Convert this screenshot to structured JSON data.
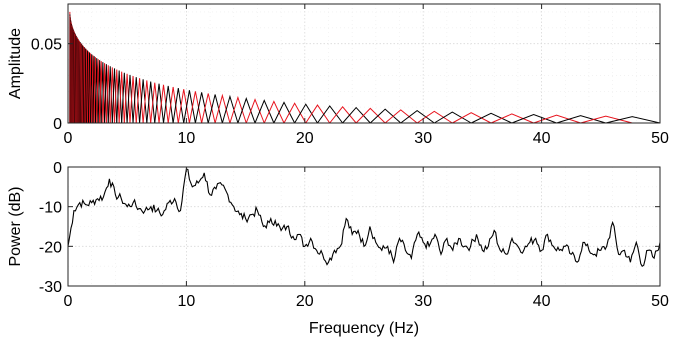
{
  "chart_data": [
    {
      "type": "line",
      "xlabel": "",
      "ylabel": "Amplitude",
      "xlim": [
        0,
        50
      ],
      "ylim": [
        0,
        0.075
      ],
      "xticks": [
        "0",
        "10",
        "20",
        "30",
        "40",
        "50"
      ],
      "yticks": [
        "0",
        "0.05"
      ],
      "grid": "on (major + minor, dotted)",
      "colors": [
        "#000000",
        "#e8141e"
      ],
      "description_values": {
        "filter_count": 120,
        "filter_shape": "triangular, alternating black/red",
        "filter_spacing": "logarithmic (dense at low frequency)",
        "peak_amplitude_at_0Hz": 0.07,
        "peak_amplitude_at_50Hz": 0.004
      }
    },
    {
      "type": "line",
      "xlabel": "Frequency (Hz)",
      "ylabel": "Power (dB)",
      "xlim": [
        0,
        50
      ],
      "ylim": [
        -30,
        0
      ],
      "xticks": [
        "0",
        "10",
        "20",
        "30",
        "40",
        "50"
      ],
      "yticks": [
        "0",
        "-10",
        "-20",
        "-30"
      ],
      "grid": "on (major + minor, dotted)",
      "color": "#000000",
      "x": [
        0,
        0.5,
        1,
        1.5,
        2,
        2.5,
        3,
        3.5,
        4,
        4.5,
        5,
        5.5,
        6,
        6.5,
        7,
        7.5,
        8,
        8.5,
        9,
        9.5,
        10,
        10.5,
        11,
        11.5,
        12,
        12.5,
        13,
        13.5,
        14,
        14.5,
        15,
        15.5,
        16,
        16.5,
        17,
        17.5,
        18,
        18.5,
        19,
        19.5,
        20,
        20.5,
        21,
        21.5,
        22,
        22.5,
        23,
        23.5,
        24,
        24.5,
        25,
        25.5,
        26,
        26.5,
        27,
        27.5,
        28,
        28.5,
        29,
        29.5,
        30,
        30.5,
        31,
        31.5,
        32,
        32.5,
        33,
        33.5,
        34,
        34.5,
        35,
        35.5,
        36,
        36.5,
        37,
        37.5,
        38,
        38.5,
        39,
        39.5,
        40,
        40.5,
        41,
        41.5,
        42,
        42.5,
        43,
        43.5,
        44,
        44.5,
        45,
        45.5,
        46,
        46.5,
        47,
        47.5,
        48,
        48.5,
        49,
        49.5,
        50
      ],
      "y": [
        -20,
        -11,
        -9,
        -9.5,
        -9,
        -8,
        -7.5,
        -3,
        -7,
        -8,
        -10,
        -9,
        -10.5,
        -11,
        -10,
        -11,
        -12,
        -9,
        -8,
        -11,
        -0.5,
        -5,
        -4,
        -1.5,
        -7,
        -5.5,
        -4.5,
        -7,
        -10,
        -12,
        -13,
        -12,
        -11,
        -15,
        -14,
        -13.5,
        -16,
        -15,
        -17.5,
        -17,
        -20,
        -18,
        -21,
        -22,
        -24,
        -21,
        -20,
        -13,
        -17,
        -16,
        -20,
        -15,
        -19,
        -21,
        -20,
        -24,
        -18,
        -21,
        -23,
        -17,
        -19,
        -20,
        -17,
        -22,
        -18,
        -21,
        -18,
        -20,
        -20,
        -17,
        -21,
        -20,
        -16,
        -21,
        -22,
        -18,
        -20,
        -21,
        -19,
        -18,
        -21,
        -17,
        -20,
        -21,
        -20,
        -22,
        -24,
        -19,
        -21,
        -22,
        -21,
        -20,
        -14,
        -22,
        -21,
        -24,
        -19,
        -25,
        -21,
        -23,
        -19
      ]
    }
  ]
}
